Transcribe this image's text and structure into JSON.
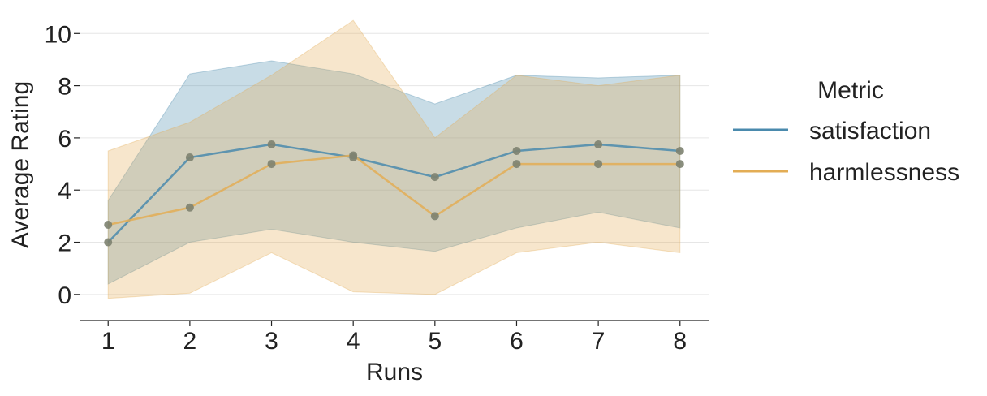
{
  "chart_data": {
    "type": "line",
    "xlabel": "Runs",
    "ylabel": "Average Rating",
    "x": [
      1,
      2,
      3,
      4,
      5,
      6,
      7,
      8
    ],
    "xlim": [
      0.65,
      8.35
    ],
    "ylim": [
      -1.0,
      10.6
    ],
    "yticks": [
      0,
      2,
      4,
      6,
      8,
      10
    ],
    "grid": "horizontal",
    "legend": {
      "title": "Metric",
      "placement": "right"
    },
    "series": [
      {
        "name": "satisfaction",
        "color": "#4a8aad",
        "values": [
          2.0,
          5.25,
          5.75,
          5.25,
          4.5,
          5.5,
          5.75,
          5.5
        ],
        "band_lower": [
          0.4,
          2.0,
          2.5,
          2.0,
          1.65,
          2.55,
          3.15,
          2.55
        ],
        "band_upper": [
          3.6,
          8.45,
          8.95,
          8.45,
          7.3,
          8.4,
          8.3,
          8.4
        ]
      },
      {
        "name": "harmlessness",
        "color": "#e3ad55",
        "values": [
          2.67,
          3.33,
          5.0,
          5.33,
          3.0,
          5.0,
          5.0,
          5.0
        ],
        "band_lower": [
          -0.15,
          0.05,
          1.6,
          0.1,
          0.0,
          1.6,
          2.0,
          1.6
        ],
        "band_upper": [
          5.5,
          6.6,
          8.4,
          10.5,
          6.0,
          8.4,
          8.0,
          8.4
        ]
      }
    ]
  }
}
